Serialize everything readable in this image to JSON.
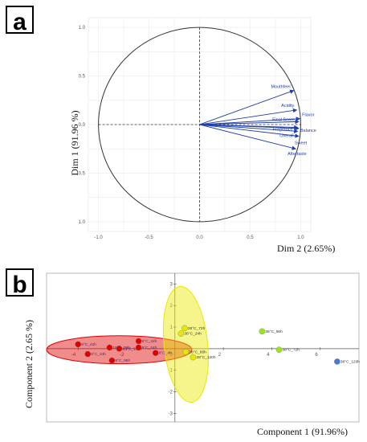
{
  "panel_a": {
    "label": "a",
    "chart_data": {
      "type": "scatter",
      "subtype": "correlation-circle",
      "title": "",
      "xlabel": "Dim 2 (2.65%)",
      "ylabel": "Dim 1 (91.96 %)",
      "xlim": [
        -1.1,
        1.1
      ],
      "ylim": [
        -1.1,
        1.1
      ],
      "x_ticks": [
        "-1.0",
        "-0.5",
        "0.0",
        "0.5",
        "1.0"
      ],
      "y_ticks": [
        "1.0",
        "0.5",
        "0.0",
        "0.5",
        "1.0"
      ],
      "grid": true,
      "vectors": [
        {
          "name": "Mouthfeel",
          "x": 0.93,
          "y": 0.35
        },
        {
          "name": "Acidity",
          "x": 0.96,
          "y": 0.15
        },
        {
          "name": "Flavor",
          "x": 0.99,
          "y": 0.06
        },
        {
          "name": "Final Score",
          "x": 0.98,
          "y": 0.03
        },
        {
          "name": "Fragrance",
          "x": 0.97,
          "y": -0.03
        },
        {
          "name": "Balance",
          "x": 0.98,
          "y": -0.04
        },
        {
          "name": "Overall",
          "x": 0.97,
          "y": -0.07
        },
        {
          "name": "Sweet",
          "x": 0.98,
          "y": -0.12
        },
        {
          "name": "Aftertaste",
          "x": 0.95,
          "y": -0.25
        }
      ]
    }
  },
  "panel_b": {
    "label": "b",
    "chart_data": {
      "type": "scatter",
      "title": "",
      "xlabel": "Component 1 (91.96%)",
      "ylabel": "Component 2 (2.65 %)",
      "xlim": [
        -5.3,
        7.6
      ],
      "ylim": [
        -3.4,
        3.5
      ],
      "x_ticks": [
        "-4",
        "-2",
        "0",
        "2",
        "4",
        "6"
      ],
      "y_ticks": [
        "3",
        "2",
        "1",
        "-1",
        "-2",
        "-3"
      ],
      "grid": false,
      "series": [
        {
          "color": "#e00000",
          "points": [
            {
              "label": "8°C_42h",
              "x": -4.0,
              "y": 0.2
            },
            {
              "label": "8°C_24h",
              "x": -3.6,
              "y": -0.25
            },
            {
              "label": "18°C_72h",
              "x": -2.7,
              "y": 0.05
            },
            {
              "label": "18°C_120h",
              "x": -2.3,
              "y": 0.0
            },
            {
              "label": "8°C_96h",
              "x": -2.6,
              "y": -0.55
            },
            {
              "label": "8°C_42h",
              "x": -1.5,
              "y": 0.35
            },
            {
              "label": "8°C_24h",
              "x": -1.5,
              "y": 0.05
            },
            {
              "label": "8°C_4h",
              "x": -0.8,
              "y": -0.2
            }
          ]
        },
        {
          "color": "#e8e800",
          "points": [
            {
              "label": "28°C_72h",
              "x": 0.4,
              "y": 0.95
            },
            {
              "label": "38°C_24h",
              "x": 0.25,
              "y": 0.7
            },
            {
              "label": "28°C_96h",
              "x": 0.45,
              "y": -0.15
            },
            {
              "label": "28°C_120h",
              "x": 0.75,
              "y": -0.4
            }
          ]
        },
        {
          "color": "#9ae61e",
          "points": [
            {
              "label": "38°C_96h",
              "x": 3.6,
              "y": 0.8
            },
            {
              "label": "38°C_72h",
              "x": 4.3,
              "y": -0.05
            }
          ]
        },
        {
          "color": "#4a78d8",
          "points": [
            {
              "label": "38°C_120h",
              "x": 6.7,
              "y": -0.6
            }
          ]
        }
      ],
      "ellipses": [
        {
          "color": "#e00000",
          "cx": -2.3,
          "cy": -0.05,
          "rx": 3.0,
          "ry": 0.65,
          "angle": 0
        },
        {
          "color": "#e8e800",
          "cx": 0.45,
          "cy": 0.2,
          "rx": 0.9,
          "ry": 2.7,
          "angle": -6
        }
      ]
    }
  }
}
